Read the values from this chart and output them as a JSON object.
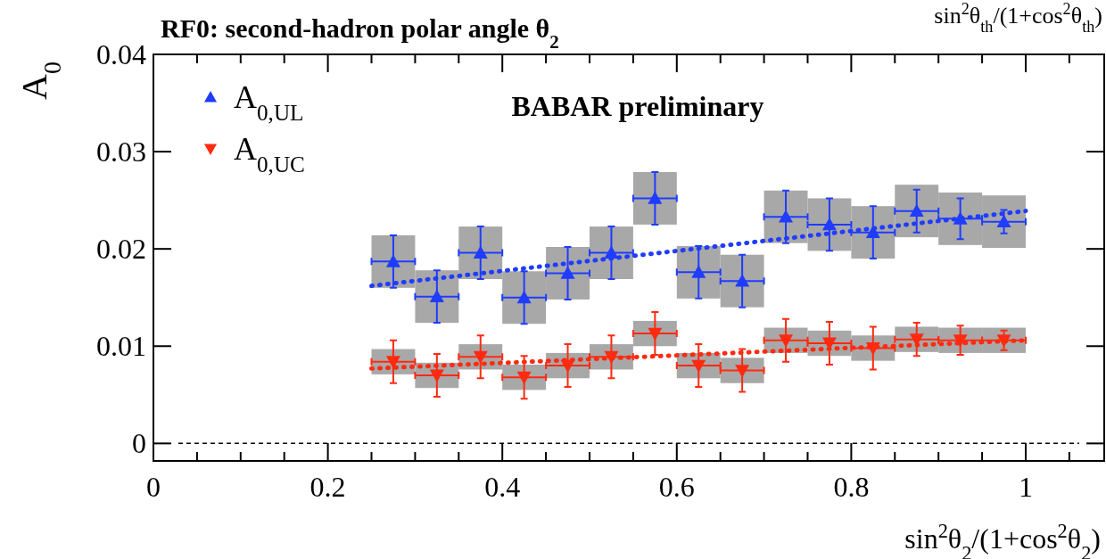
{
  "chart_data": {
    "type": "scatter",
    "title": "RF0: second-hadron polar angle θ$_{2}$",
    "xlabel": "sin$^{2}$θ$_{2}$/(1+cos$^{2}$θ$_{2}$)",
    "ylabel": "A$_{0}$",
    "annotations": [
      "BABAR preliminary",
      "sin$^{2}$θ$_{th}$/(1+cos$^{2}$θ$_{th}$)"
    ],
    "xlim": [
      0,
      1.09
    ],
    "ylim": [
      -0.0018,
      0.04
    ],
    "xticks": [
      0,
      {
        "value": 0.05,
        "label": null
      },
      {
        "value": 0.1,
        "label": null
      },
      {
        "value": 0.15,
        "label": null
      },
      0.2,
      {
        "value": 0.25,
        "label": null
      },
      {
        "value": 0.3,
        "label": null
      },
      {
        "value": 0.35,
        "label": null
      },
      0.4,
      {
        "value": 0.45,
        "label": null
      },
      {
        "value": 0.5,
        "label": null
      },
      {
        "value": 0.55,
        "label": null
      },
      0.6,
      {
        "value": 0.65,
        "label": null
      },
      {
        "value": 0.7,
        "label": null
      },
      {
        "value": 0.75,
        "label": null
      },
      0.8,
      {
        "value": 0.85,
        "label": null
      },
      {
        "value": 0.9,
        "label": null
      },
      {
        "value": 0.95,
        "label": null
      },
      1,
      {
        "value": 1.05,
        "label": null
      }
    ],
    "yticks": [
      0,
      0.01,
      0.02,
      0.03,
      0.04
    ],
    "legend": "top left",
    "grid": false,
    "ref_lines": [
      {
        "axis": "y",
        "value": 0,
        "line_style": "dashed",
        "color": "#000000"
      }
    ],
    "series": [
      {
        "type": "bar",
        "color": "#a8a8a8",
        "x": [
          0.275,
          0.325,
          0.375,
          0.425,
          0.475,
          0.525,
          0.575,
          0.625,
          0.675,
          0.725,
          0.775,
          0.825,
          0.875,
          0.925,
          0.975
        ],
        "base": [
          0.016,
          0.0124,
          0.0169,
          0.0123,
          0.0148,
          0.0169,
          0.0225,
          0.0149,
          0.014,
          0.0206,
          0.0198,
          0.019,
          0.0212,
          0.0204,
          0.0201
        ],
        "values": [
          0.0054,
          0.0054,
          0.0054,
          0.0054,
          0.0054,
          0.0054,
          0.0054,
          0.0054,
          0.0054,
          0.0054,
          0.0054,
          0.0054,
          0.0054,
          0.0054,
          0.0054
        ]
      },
      {
        "type": "bar",
        "color": "#a8a8a8",
        "x": [
          0.275,
          0.325,
          0.375,
          0.425,
          0.475,
          0.525,
          0.575,
          0.625,
          0.675,
          0.725,
          0.775,
          0.825,
          0.875,
          0.925,
          0.975
        ],
        "base": [
          0.0071,
          0.0057,
          0.0076,
          0.0055,
          0.0067,
          0.0076,
          0.01,
          0.0067,
          0.0062,
          0.0093,
          0.009,
          0.0085,
          0.0094,
          0.0093,
          0.0093
        ],
        "values": [
          0.0026,
          0.0026,
          0.0026,
          0.0026,
          0.0026,
          0.0026,
          0.0026,
          0.0026,
          0.0026,
          0.0026,
          0.0026,
          0.0026,
          0.0026,
          0.0026,
          0.0026
        ]
      },
      {
        "type": "line",
        "color": "#1f3cff",
        "line_style": "dotted",
        "marker": "none",
        "x": [
          0.25,
          1
        ],
        "values": [
          0.0162,
          0.0239
        ]
      },
      {
        "type": "line",
        "color": "#ff2a10",
        "line_style": "dotted",
        "marker": "none",
        "x": [
          0.25,
          1
        ],
        "values": [
          0.0077,
          0.0106
        ]
      },
      {
        "name": "A$_{0,UL}$",
        "color": "#1f3cff",
        "marker": "triangle",
        "x": [
          0.275,
          0.325,
          0.375,
          0.425,
          0.475,
          0.525,
          0.575,
          0.625,
          0.675,
          0.725,
          0.775,
          0.825,
          0.875,
          0.925,
          0.975
        ],
        "values": [
          0.0187,
          0.0151,
          0.0196,
          0.015,
          0.0175,
          0.0196,
          0.0252,
          0.0176,
          0.0167,
          0.0233,
          0.0225,
          0.0217,
          0.0239,
          0.0231,
          0.0228
        ],
        "errors": [
          0.0027,
          0.0027,
          0.0027,
          0.0027,
          0.0027,
          0.0027,
          0.0027,
          0.0027,
          0.0027,
          0.0027,
          0.0027,
          0.0027,
          0.0022,
          0.0021,
          0.0012
        ],
        "xerrors": [
          0.025,
          0.025,
          0.025,
          0.025,
          0.025,
          0.025,
          0.025,
          0.025,
          0.025,
          0.025,
          0.025,
          0.025,
          0.025,
          0.025,
          0.025
        ]
      },
      {
        "name": "A$_{0,UC}$",
        "color": "#ff2a10",
        "marker": "triangle-down",
        "x": [
          0.275,
          0.325,
          0.375,
          0.425,
          0.475,
          0.525,
          0.575,
          0.625,
          0.675,
          0.725,
          0.775,
          0.825,
          0.875,
          0.925,
          0.975
        ],
        "values": [
          0.0084,
          0.007,
          0.0089,
          0.0068,
          0.008,
          0.0089,
          0.0113,
          0.008,
          0.0075,
          0.0106,
          0.0103,
          0.0098,
          0.0107,
          0.0106,
          0.0106
        ],
        "errors": [
          0.0022,
          0.0022,
          0.0022,
          0.0022,
          0.0022,
          0.0022,
          0.0022,
          0.0022,
          0.0022,
          0.0022,
          0.0022,
          0.0022,
          0.0017,
          0.0015,
          0.001
        ],
        "xerrors": [
          0.025,
          0.025,
          0.025,
          0.025,
          0.025,
          0.025,
          0.025,
          0.025,
          0.025,
          0.025,
          0.025,
          0.025,
          0.025,
          0.025,
          0.025
        ]
      }
    ]
  }
}
